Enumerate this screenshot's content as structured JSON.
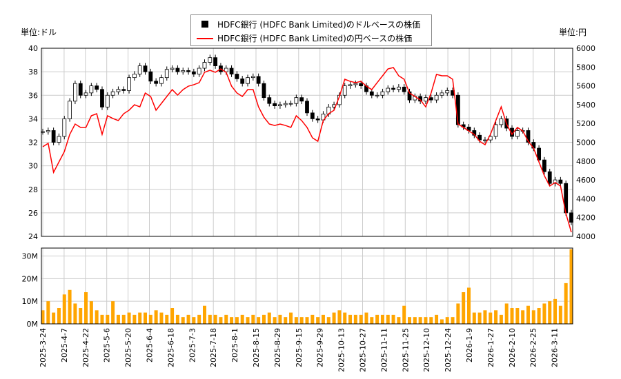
{
  "labels": {
    "left_unit": "単位:ドル",
    "right_unit": "単位:円"
  },
  "legend": [
    {
      "label": "HDFC銀行 (HDFC Bank Limited)のドルベースの株価",
      "color": "#000000"
    },
    {
      "label": "HDFC銀行 (HDFC Bank Limited)の円ベースの株価",
      "color": "#ff0000"
    }
  ],
  "chart_data": [
    {
      "type": "candlestick+line",
      "left_axis": {
        "ylim": [
          24,
          40
        ],
        "ticks": [
          24,
          26,
          28,
          30,
          32,
          34,
          36,
          38,
          40
        ]
      },
      "right_axis": {
        "ylim": [
          4000,
          6000
        ],
        "ticks": [
          4000,
          4200,
          4400,
          4600,
          4800,
          5000,
          5200,
          5400,
          5600,
          5800,
          6000
        ]
      },
      "x_tick_labels": [
        "2025-3-24",
        "2025-4-7",
        "2025-4-22",
        "2025-5-6",
        "2025-5-20",
        "2025-6-4",
        "2025-6-18",
        "2025-7-3",
        "2025-7-18",
        "2025-8-1",
        "2025-8-15",
        "2025-8-29",
        "2025-9-15",
        "2025-9-29",
        "2025-10-13",
        "2025-10-27",
        "2025-11-11",
        "2025-11-25",
        "2025-12-10",
        "2025-12-24",
        "2026-1-9",
        "2026-1-27",
        "2026-2-10",
        "2026-2-25",
        "2026-3-11"
      ],
      "grid": true,
      "usd_close": [
        32.9,
        33.0,
        32.0,
        32.5,
        34.0,
        35.5,
        37.0,
        36.0,
        36.2,
        36.8,
        36.5,
        35.0,
        36.0,
        36.3,
        36.5,
        36.4,
        37.5,
        37.8,
        38.5,
        38.0,
        37.2,
        37.0,
        37.5,
        38.2,
        38.3,
        38.0,
        38.1,
        38.0,
        37.8,
        38.3,
        38.8,
        39.2,
        38.5,
        38.0,
        38.3,
        37.8,
        37.4,
        37.0,
        37.5,
        37.6,
        37.0,
        35.8,
        35.3,
        35.1,
        35.2,
        35.3,
        35.3,
        35.8,
        35.5,
        34.5,
        34.0,
        33.9,
        34.4,
        35.0,
        35.2,
        36.0,
        36.8,
        36.9,
        37.0,
        36.8,
        36.3,
        36.0,
        36.0,
        36.3,
        36.6,
        36.5,
        36.7,
        36.3,
        35.6,
        35.9,
        35.5,
        35.8,
        35.6,
        36.0,
        36.2,
        36.4,
        36.0,
        33.5,
        33.3,
        33.0,
        32.6,
        32.2,
        32.2,
        32.5,
        33.5,
        34.0,
        33.2,
        32.5,
        33.0,
        33.0,
        32.0,
        31.5,
        30.5,
        29.5,
        28.5,
        28.8,
        28.5,
        26.0,
        25.2
      ],
      "jpy_price": [
        4952,
        4989,
        4681,
        4791,
        4901,
        5084,
        5194,
        5158,
        5158,
        5282,
        5304,
        5084,
        5282,
        5253,
        5231,
        5304,
        5341,
        5399,
        5377,
        5524,
        5487,
        5341,
        5414,
        5487,
        5560,
        5502,
        5560,
        5597,
        5612,
        5634,
        5744,
        5766,
        5744,
        5780,
        5744,
        5597,
        5524,
        5487,
        5560,
        5560,
        5377,
        5267,
        5194,
        5179,
        5194,
        5179,
        5158,
        5282,
        5231,
        5158,
        5048,
        5011,
        5231,
        5304,
        5341,
        5487,
        5670,
        5648,
        5634,
        5648,
        5597,
        5560,
        5634,
        5707,
        5780,
        5795,
        5707,
        5670,
        5524,
        5487,
        5451,
        5377,
        5524,
        5722,
        5707,
        5707,
        5670,
        5194,
        5158,
        5121,
        5084,
        5011,
        4974,
        5084,
        5231,
        5377,
        5194,
        5084,
        5158,
        5121,
        5011,
        4938,
        4791,
        4645,
        4535,
        4572,
        4535,
        4242,
        4044
      ]
    },
    {
      "type": "bar",
      "ylim": [
        0,
        33500000
      ],
      "ticks": [
        {
          "v": 0,
          "label": "0M"
        },
        {
          "v": 10000000,
          "label": "10M"
        },
        {
          "v": 20000000,
          "label": "20M"
        },
        {
          "v": 30000000,
          "label": "30M"
        }
      ],
      "bar_color": "#ffa500",
      "volume_millions": [
        6,
        10,
        5,
        7,
        13,
        15,
        9,
        7,
        14,
        10,
        6,
        4,
        4,
        10,
        4,
        4,
        5,
        4,
        5,
        5,
        4,
        6,
        5,
        4,
        7,
        4,
        3,
        4,
        3,
        4,
        8,
        4,
        4,
        3,
        4,
        3,
        3,
        4,
        3,
        4,
        3,
        4,
        5,
        3,
        4,
        3,
        5,
        3,
        3,
        3,
        4,
        3,
        4,
        3,
        5,
        6,
        5,
        4,
        4,
        4,
        5,
        3,
        4,
        4,
        4,
        4,
        3,
        8,
        3,
        3,
        3,
        3,
        3,
        4,
        2,
        3,
        3,
        9,
        14,
        16,
        5,
        5,
        6,
        5,
        6,
        4,
        9,
        7,
        7,
        6,
        8,
        6,
        7,
        9,
        10,
        11,
        8,
        18,
        33
      ]
    }
  ]
}
